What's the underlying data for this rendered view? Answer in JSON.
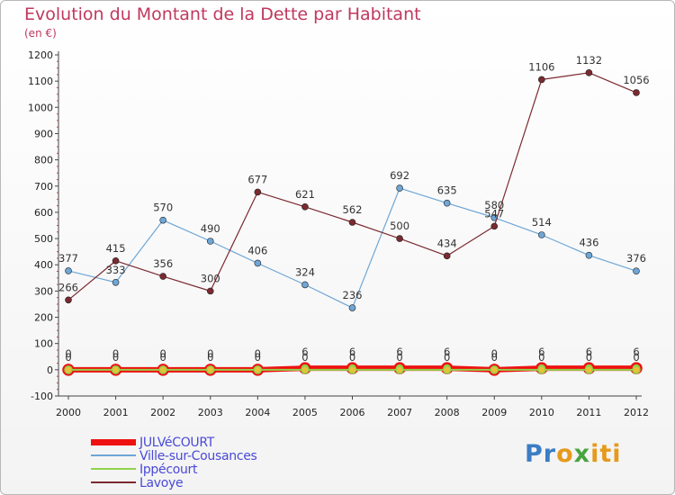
{
  "header": {
    "title": "Evolution du Montant de la Dette par Habitant",
    "unit": "(en €)"
  },
  "logo": {
    "text": "Proxiti",
    "parts": [
      {
        "text": "Pr",
        "color": "#3b7dc4"
      },
      {
        "text": "o",
        "color": "#e69a1d"
      },
      {
        "text": "x",
        "color": "#4aa33e"
      },
      {
        "text": "iti",
        "color": "#e69a1d"
      }
    ]
  },
  "chart_data": {
    "type": "line",
    "x": [
      "2000",
      "2001",
      "2002",
      "2003",
      "2004",
      "2005",
      "2006",
      "2007",
      "2008",
      "2009",
      "2010",
      "2011",
      "2012"
    ],
    "yticks": [
      -100,
      0,
      100,
      200,
      300,
      400,
      500,
      600,
      700,
      800,
      900,
      1000,
      1100,
      1200
    ],
    "ylim": [
      -100,
      1200
    ],
    "grid": false,
    "legend_position": "bottom-left",
    "series": [
      {
        "name": "JULVéCOURT",
        "color": "#ee1111",
        "values": [
          0,
          0,
          0,
          0,
          0,
          6,
          6,
          6,
          6,
          0,
          6,
          6,
          6
        ],
        "labels": [
          "0",
          "0",
          "0",
          "0",
          "0",
          "6",
          "6",
          "6",
          "6",
          "0",
          "6",
          "6",
          "6"
        ]
      },
      {
        "name": "Ville-sur-Cousances",
        "color": "#6ea6d6",
        "values": [
          377,
          333,
          570,
          490,
          406,
          324,
          236,
          692,
          635,
          580,
          514,
          436,
          376
        ],
        "labels": [
          "377",
          "333",
          "570",
          "490",
          "406",
          "324",
          "236",
          "692",
          "635",
          "580",
          "514",
          "436",
          "376"
        ]
      },
      {
        "name": "Ippécourt",
        "color": "#8fd34a",
        "values": [
          0,
          0,
          0,
          0,
          0,
          0,
          0,
          0,
          0,
          0,
          0,
          0,
          0
        ],
        "labels": [
          "0",
          "0",
          "0",
          "0",
          "0",
          "0",
          "0",
          "0",
          "0",
          "0",
          "0",
          "0",
          "0"
        ]
      },
      {
        "name": "Lavoye",
        "color": "#7a2a30",
        "values": [
          266,
          415,
          356,
          300,
          677,
          621,
          562,
          500,
          434,
          547,
          1106,
          1132,
          1056
        ],
        "labels": [
          "266",
          "415",
          "356",
          "300",
          "677",
          "621",
          "562",
          "500",
          "434",
          "547",
          "1106",
          "1132",
          "1056"
        ]
      }
    ]
  }
}
